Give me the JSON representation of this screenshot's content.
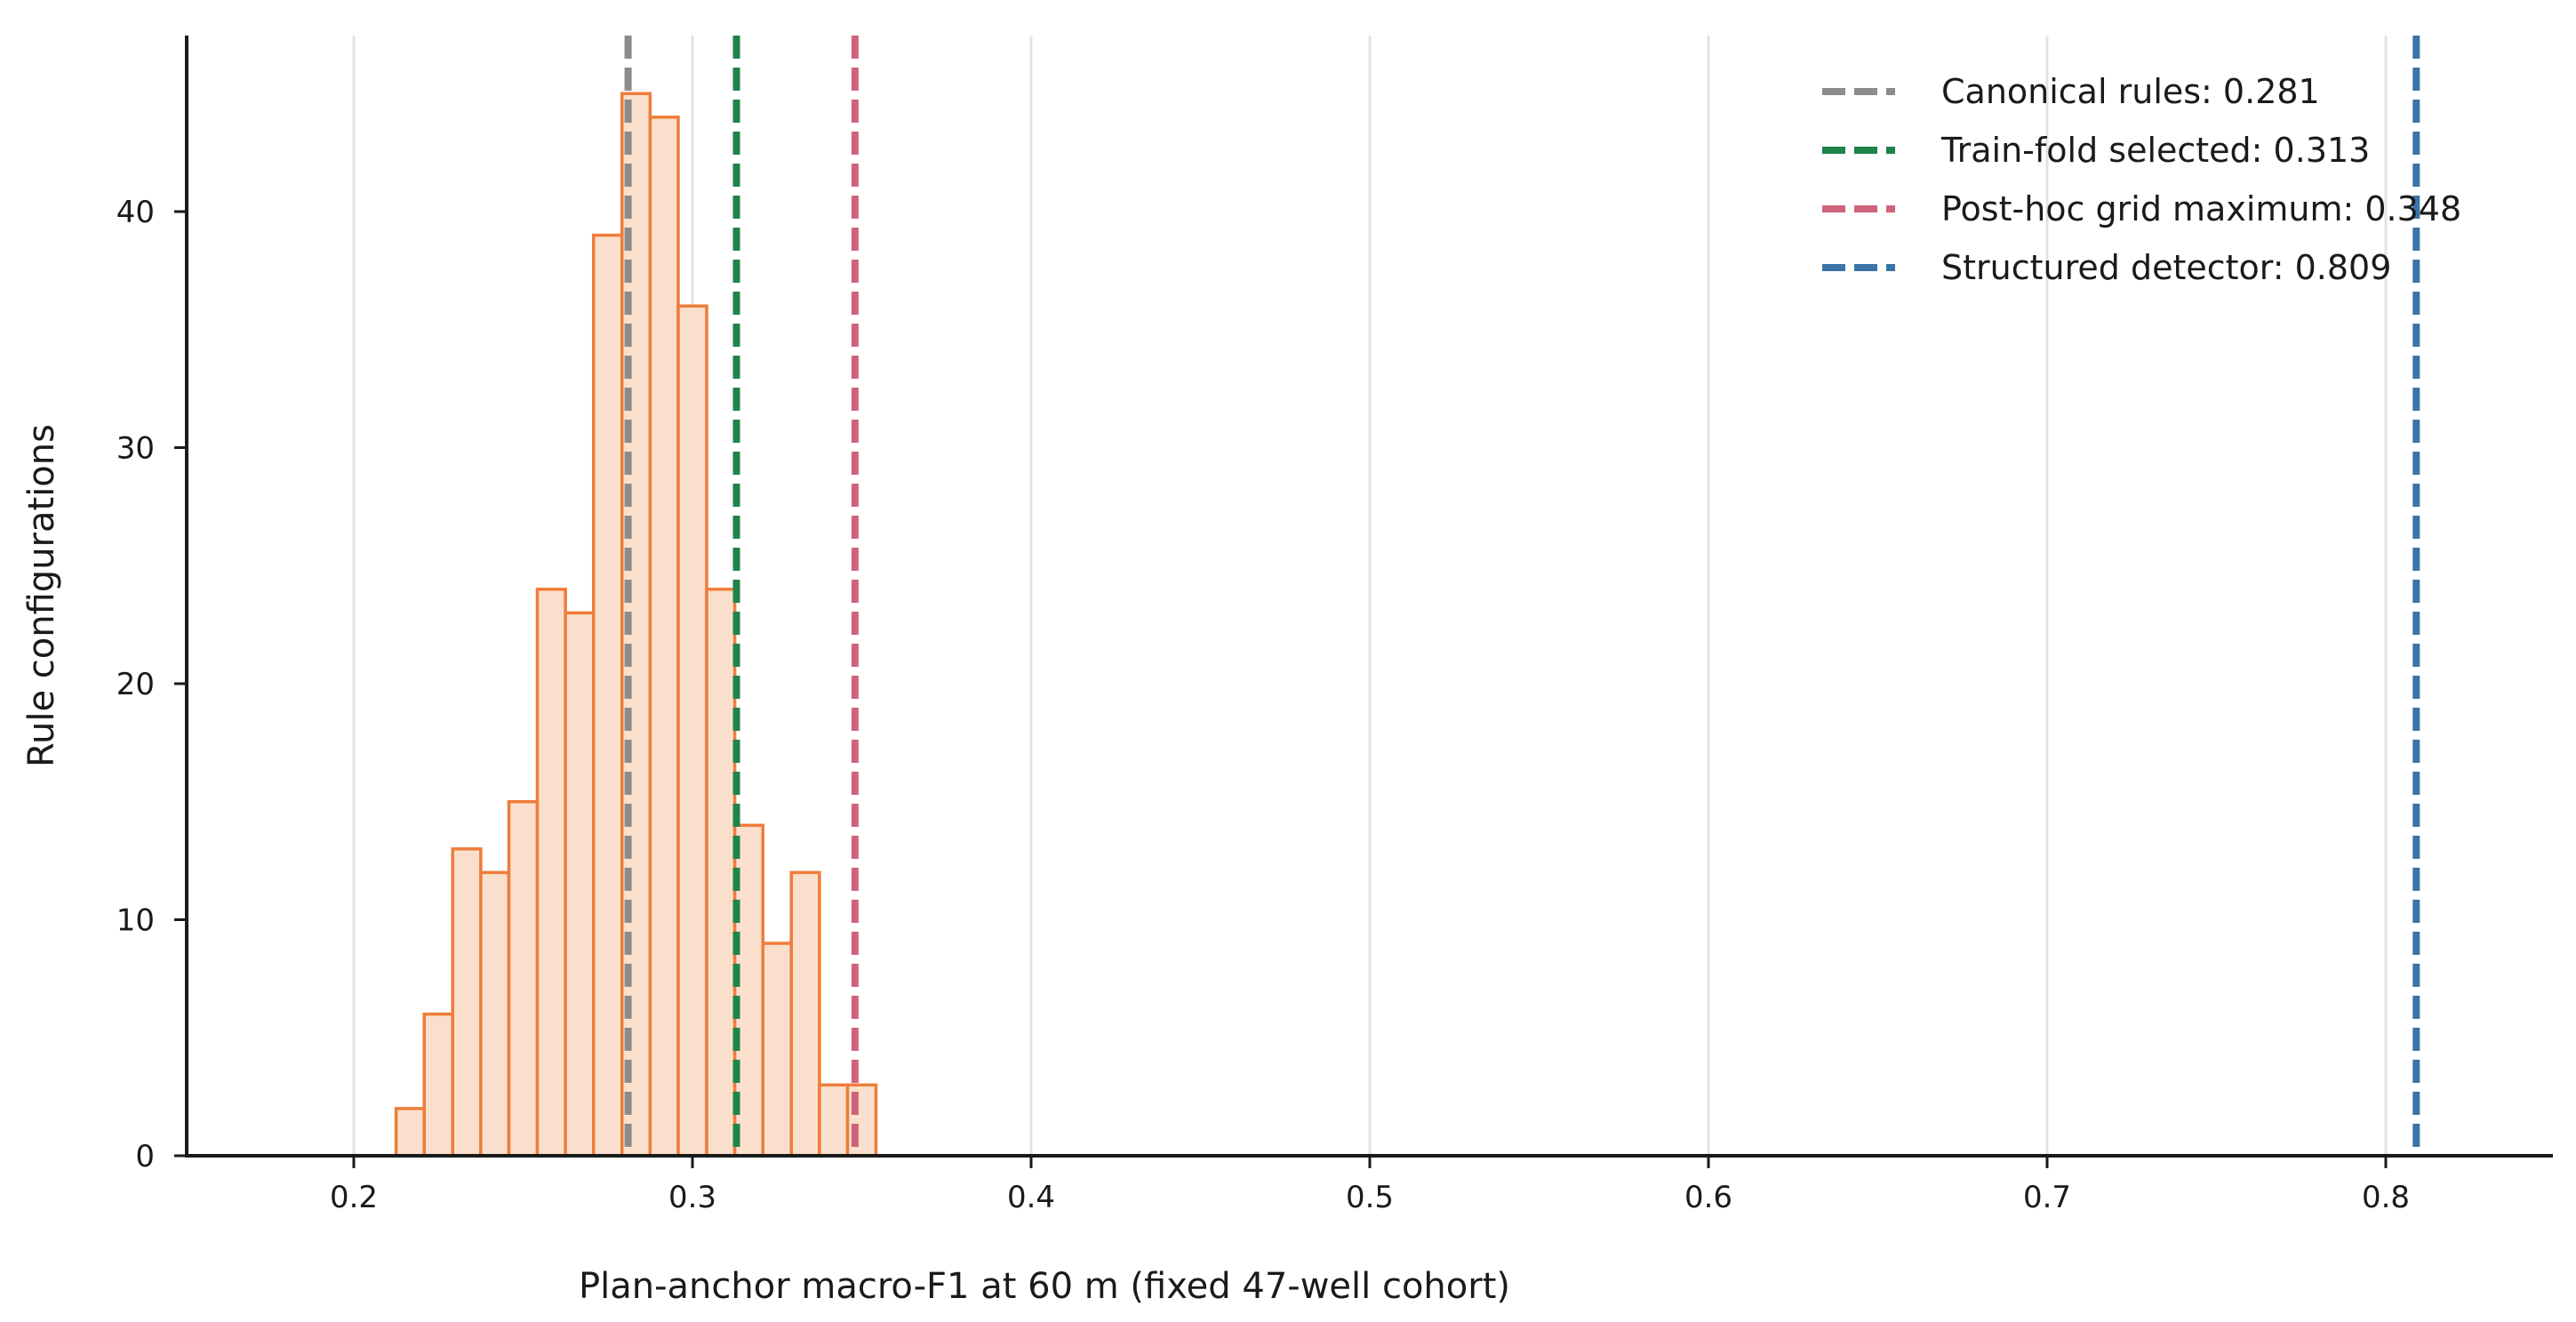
{
  "chart_data": {
    "type": "bar",
    "subtype": "histogram",
    "title": "",
    "xlabel": "Plan-anchor macro-F1 at 60 m (fixed 47-well cohort)",
    "ylabel": "Rule configurations",
    "xlim": [
      0.15,
      0.85
    ],
    "ylim": [
      0,
      47.5
    ],
    "xticks": [
      0.2,
      0.3,
      0.4,
      0.5,
      0.6,
      0.7,
      0.8
    ],
    "xtick_labels": [
      "0.2",
      "0.3",
      "0.4",
      "0.5",
      "0.6",
      "0.7",
      "0.8"
    ],
    "yticks": [
      0,
      10,
      20,
      30,
      40
    ],
    "ytick_labels": [
      "0",
      "10",
      "20",
      "30",
      "40"
    ],
    "vertical_grid": true,
    "bin_width": 0.00833,
    "bins": [
      {
        "x0": 0.2125,
        "x1": 0.2208,
        "count": 2
      },
      {
        "x0": 0.2208,
        "x1": 0.2292,
        "count": 6
      },
      {
        "x0": 0.2292,
        "x1": 0.2375,
        "count": 13
      },
      {
        "x0": 0.2375,
        "x1": 0.2458,
        "count": 12
      },
      {
        "x0": 0.2458,
        "x1": 0.2542,
        "count": 15
      },
      {
        "x0": 0.2542,
        "x1": 0.2625,
        "count": 24
      },
      {
        "x0": 0.2625,
        "x1": 0.2708,
        "count": 23
      },
      {
        "x0": 0.2708,
        "x1": 0.2792,
        "count": 39
      },
      {
        "x0": 0.2792,
        "x1": 0.2875,
        "count": 45
      },
      {
        "x0": 0.2875,
        "x1": 0.2958,
        "count": 44
      },
      {
        "x0": 0.2958,
        "x1": 0.3042,
        "count": 36
      },
      {
        "x0": 0.3042,
        "x1": 0.3125,
        "count": 24
      },
      {
        "x0": 0.3125,
        "x1": 0.3208,
        "count": 14
      },
      {
        "x0": 0.3208,
        "x1": 0.3292,
        "count": 9
      },
      {
        "x0": 0.3292,
        "x1": 0.3375,
        "count": 12
      },
      {
        "x0": 0.3375,
        "x1": 0.3458,
        "count": 3
      },
      {
        "x0": 0.3458,
        "x1": 0.3542,
        "count": 3
      }
    ],
    "bar_fill": "#fae0cc",
    "bar_edge": "#ee7d3a",
    "reference_lines": [
      {
        "label": "Canonical rules: 0.281",
        "value": 0.281,
        "color": "#8c8c8c"
      },
      {
        "label": "Train-fold selected: 0.313",
        "value": 0.313,
        "color": "#1e8449"
      },
      {
        "label": "Post-hoc grid maximum: 0.348",
        "value": 0.348,
        "color": "#d0637a"
      },
      {
        "label": "Structured detector: 0.809",
        "value": 0.809,
        "color": "#3c73a8"
      }
    ],
    "legend_position": "top-right"
  }
}
